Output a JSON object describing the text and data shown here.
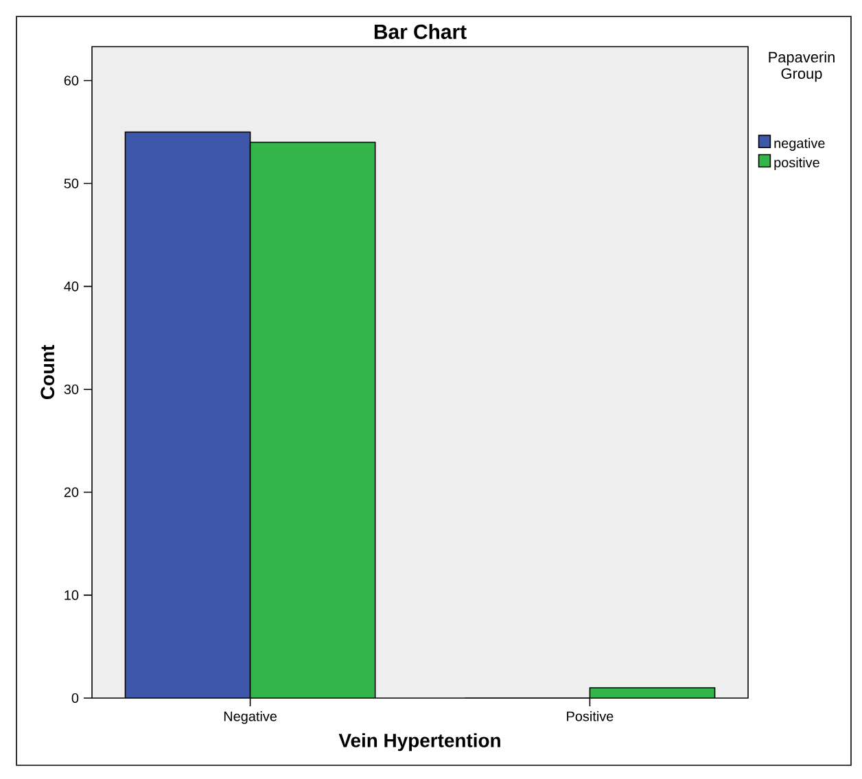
{
  "chart_data": {
    "type": "bar",
    "title": "Bar Chart",
    "xlabel": "Vein Hypertention",
    "ylabel": "Count",
    "legend_title": "Papaverin Group",
    "categories": [
      "Negative",
      "Positive"
    ],
    "series": [
      {
        "name": "negative",
        "color": "#3f57a9",
        "values": [
          55,
          0
        ]
      },
      {
        "name": "positive",
        "color": "#33b54a",
        "values": [
          54,
          1
        ]
      }
    ],
    "ylim": [
      0,
      63.3
    ],
    "yticks": [
      0,
      10,
      20,
      30,
      40,
      50,
      60
    ],
    "grid": false,
    "legend": "right"
  }
}
